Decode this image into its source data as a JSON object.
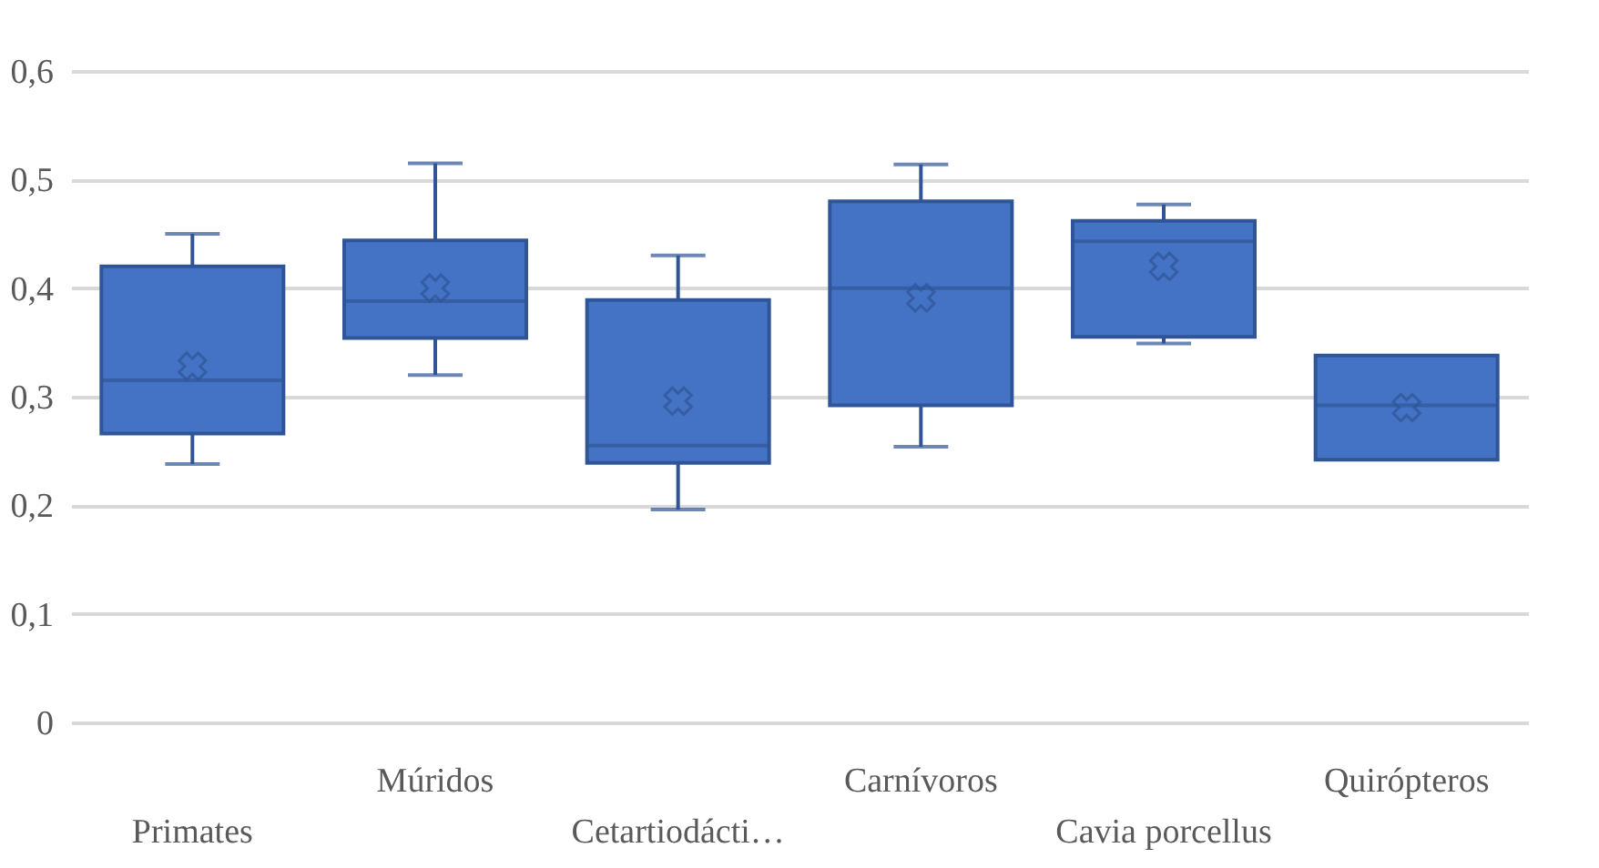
{
  "chart_data": {
    "type": "box",
    "categories": [
      "Primates",
      "Múridos",
      "Cetartiodácti…",
      "Carnívoros",
      "Cavia porcellus",
      "Quirópteros"
    ],
    "boxes": [
      {
        "low": 0.238,
        "q1": 0.266,
        "median": 0.315,
        "q3": 0.42,
        "high": 0.45,
        "mean": 0.328
      },
      {
        "low": 0.32,
        "q1": 0.354,
        "median": 0.388,
        "q3": 0.444,
        "high": 0.515,
        "mean": 0.4
      },
      {
        "low": 0.196,
        "q1": 0.239,
        "median": 0.255,
        "q3": 0.389,
        "high": 0.43,
        "mean": 0.296
      },
      {
        "low": 0.254,
        "q1": 0.292,
        "median": 0.4,
        "q3": 0.48,
        "high": 0.514,
        "mean": 0.391
      },
      {
        "low": 0.349,
        "q1": 0.355,
        "median": 0.443,
        "q3": 0.462,
        "high": 0.477,
        "mean": 0.42
      },
      {
        "low": 0.242,
        "q1": 0.242,
        "median": 0.292,
        "q3": 0.338,
        "high": 0.338,
        "mean": 0.29
      }
    ],
    "color": "#4472c4",
    "ylim": [
      0,
      0.6
    ],
    "yticks": [
      {
        "value": 0,
        "label": "0"
      },
      {
        "value": 0.1,
        "label": "0,1"
      },
      {
        "value": 0.2,
        "label": "0,2"
      },
      {
        "value": 0.3,
        "label": "0,3"
      },
      {
        "value": 0.4,
        "label": "0,4"
      },
      {
        "value": 0.5,
        "label": "0,5"
      },
      {
        "value": 0.6,
        "label": "0,6"
      }
    ],
    "grid": "y",
    "marker": "cross"
  }
}
